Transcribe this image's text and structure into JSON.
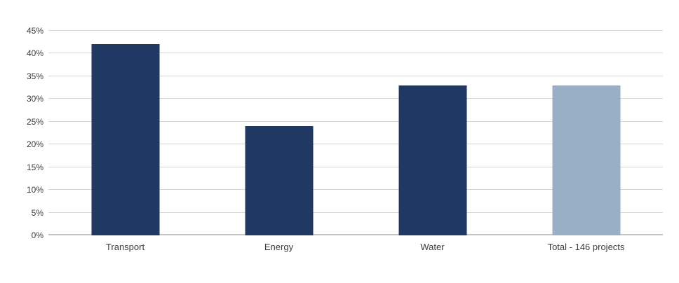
{
  "chart_data": {
    "type": "bar",
    "title": "",
    "xlabel": "",
    "ylabel": "",
    "categories": [
      "Transport",
      "Energy",
      "Water",
      "Total - 146 projects"
    ],
    "values": [
      42,
      24,
      33,
      33
    ],
    "value_unit": "%",
    "bar_colors": [
      "#1f3864",
      "#1f3864",
      "#1f3864",
      "#98afc6"
    ],
    "ylim": [
      0,
      45
    ],
    "yticks": [
      {
        "value": 0,
        "label": "0%"
      },
      {
        "value": 5,
        "label": "5%"
      },
      {
        "value": 10,
        "label": "10%"
      },
      {
        "value": 15,
        "label": "15%"
      },
      {
        "value": 20,
        "label": "20%"
      },
      {
        "value": 25,
        "label": "25%"
      },
      {
        "value": 30,
        "label": "30%"
      },
      {
        "value": 35,
        "label": "35%"
      },
      {
        "value": 40,
        "label": "40%"
      },
      {
        "value": 45,
        "label": "45%"
      }
    ],
    "grid": true,
    "legend": "none"
  },
  "colors": {
    "bar_primary": "#1f3864",
    "bar_total": "#98afc6",
    "gridline": "#d5d5d5",
    "axis_line": "#c3c3c3",
    "label_text": "#3c3c3c",
    "background": "#ffffff"
  }
}
